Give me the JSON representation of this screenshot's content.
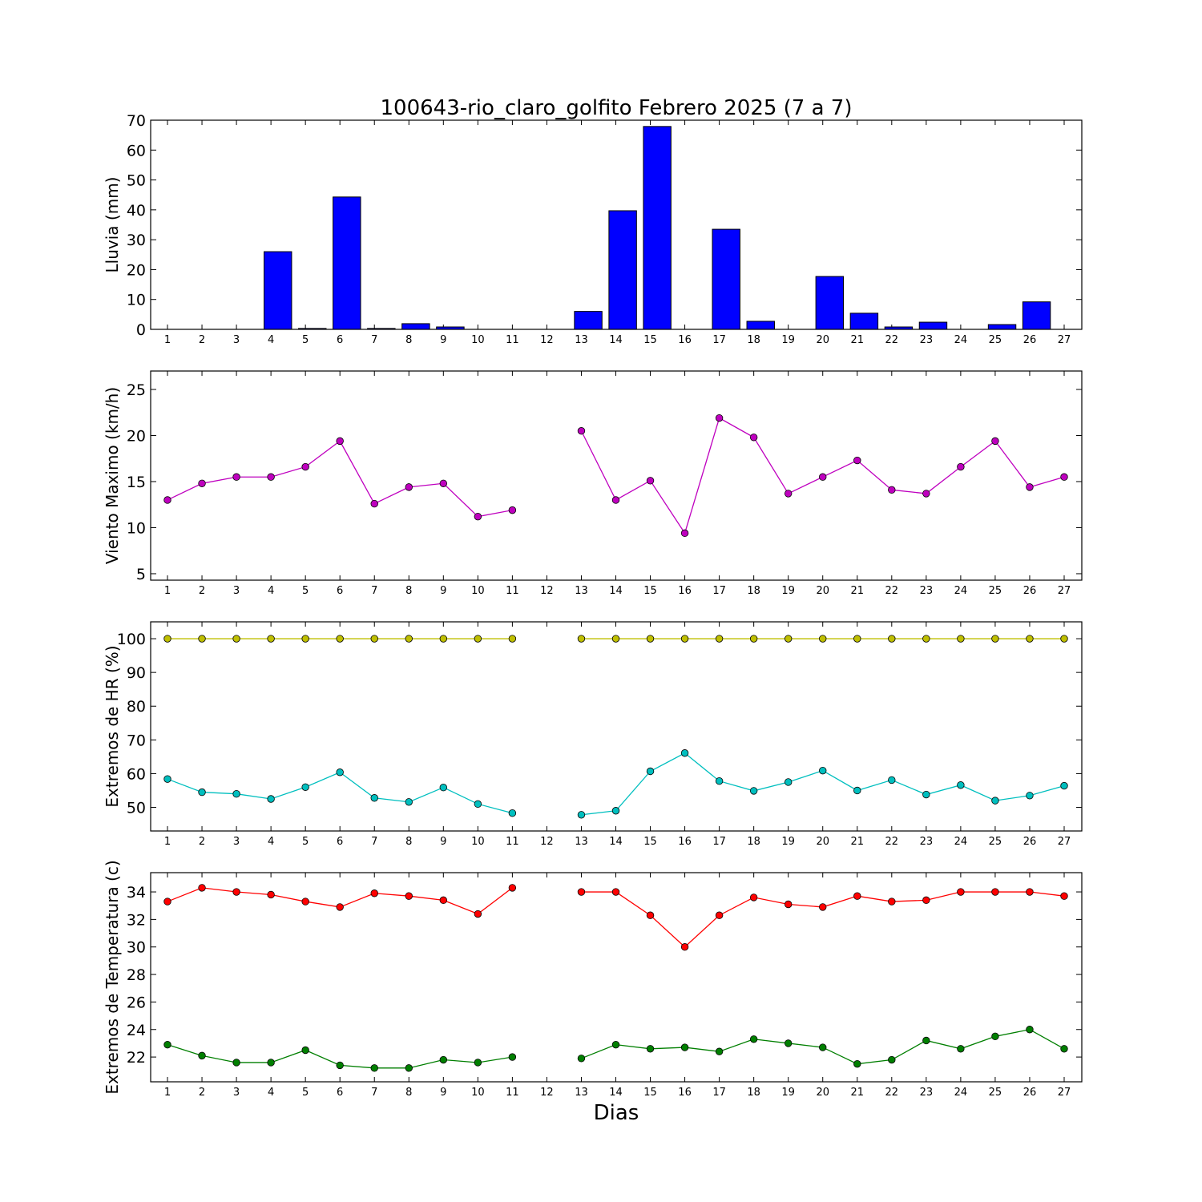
{
  "title": "100643-rio_claro_golfito Febrero 2025  (7 a 7)",
  "xlabel": "Dias",
  "chart_data": [
    {
      "type": "bar",
      "ylabel": "Lluvia (mm)",
      "ylim": [
        0,
        70
      ],
      "yticks": [
        0,
        10,
        20,
        30,
        40,
        50,
        60,
        70
      ],
      "categories": [
        1,
        2,
        3,
        4,
        5,
        6,
        7,
        8,
        9,
        10,
        11,
        12,
        13,
        14,
        15,
        16,
        17,
        18,
        19,
        20,
        21,
        22,
        23,
        24,
        25,
        26,
        27
      ],
      "series": [
        {
          "color": "#0000ff",
          "values": [
            0,
            0,
            0,
            26.0,
            0.3,
            44.3,
            0.3,
            1.9,
            0.8,
            0,
            0,
            0,
            6.0,
            39.7,
            67.9,
            0,
            33.5,
            2.7,
            0,
            17.7,
            5.4,
            0.8,
            2.4,
            0,
            1.6,
            9.2,
            0
          ]
        }
      ]
    },
    {
      "type": "line",
      "ylabel": "Viento Maximo (km/h)",
      "ylim": [
        4.3,
        27
      ],
      "yticks": [
        5,
        10,
        15,
        20,
        25
      ],
      "categories": [
        1,
        2,
        3,
        4,
        5,
        6,
        7,
        8,
        9,
        10,
        11,
        12,
        13,
        14,
        15,
        16,
        17,
        18,
        19,
        20,
        21,
        22,
        23,
        24,
        25,
        26,
        27
      ],
      "series": [
        {
          "color": "#bf00bf",
          "values": [
            13.0,
            14.8,
            15.5,
            15.5,
            16.6,
            19.4,
            12.6,
            14.4,
            14.8,
            11.2,
            11.9,
            null,
            20.5,
            13.0,
            15.1,
            9.4,
            21.9,
            19.8,
            13.7,
            15.5,
            17.3,
            14.1,
            13.7,
            16.6,
            19.4,
            14.4,
            15.5
          ]
        }
      ]
    },
    {
      "type": "line",
      "ylabel": "Extremos de HR (%)",
      "ylim": [
        43,
        105
      ],
      "yticks": [
        50,
        60,
        70,
        80,
        90,
        100
      ],
      "categories": [
        1,
        2,
        3,
        4,
        5,
        6,
        7,
        8,
        9,
        10,
        11,
        12,
        13,
        14,
        15,
        16,
        17,
        18,
        19,
        20,
        21,
        22,
        23,
        24,
        25,
        26,
        27
      ],
      "series": [
        {
          "color": "#bfbf00",
          "values": [
            100,
            100,
            100,
            100,
            100,
            100,
            100,
            100,
            100,
            100,
            100,
            null,
            100,
            100,
            100,
            100,
            100,
            100,
            100,
            100,
            100,
            100,
            100,
            100,
            100,
            100,
            100
          ]
        },
        {
          "color": "#00bfbf",
          "values": [
            58.4,
            54.5,
            54.0,
            52.5,
            56.0,
            60.4,
            52.8,
            51.6,
            55.9,
            51.0,
            48.3,
            null,
            47.8,
            49.0,
            60.7,
            66.1,
            57.8,
            54.9,
            57.5,
            60.9,
            55.0,
            58.1,
            53.8,
            56.6,
            52.0,
            53.5,
            56.4
          ]
        }
      ]
    },
    {
      "type": "line",
      "ylabel": "Extremos de Temperatura (c)",
      "ylim": [
        20.2,
        35.4
      ],
      "yticks": [
        22,
        24,
        26,
        28,
        30,
        32,
        34
      ],
      "categories": [
        1,
        2,
        3,
        4,
        5,
        6,
        7,
        8,
        9,
        10,
        11,
        12,
        13,
        14,
        15,
        16,
        17,
        18,
        19,
        20,
        21,
        22,
        23,
        24,
        25,
        26,
        27
      ],
      "series": [
        {
          "color": "#ff0000",
          "values": [
            33.3,
            34.3,
            34.0,
            33.8,
            33.3,
            32.9,
            33.9,
            33.7,
            33.4,
            32.4,
            34.3,
            null,
            34.0,
            34.0,
            32.3,
            30.0,
            32.3,
            33.6,
            33.1,
            32.9,
            33.7,
            33.3,
            33.4,
            34.0,
            34.0,
            34.0,
            33.7
          ]
        },
        {
          "color": "#007f00",
          "values": [
            22.9,
            22.1,
            21.6,
            21.6,
            22.5,
            21.4,
            21.2,
            21.2,
            21.8,
            21.6,
            22.0,
            null,
            21.9,
            22.9,
            22.6,
            22.7,
            22.4,
            23.3,
            23.0,
            22.7,
            21.5,
            21.8,
            23.2,
            22.6,
            23.5,
            24.0,
            22.6
          ]
        }
      ]
    }
  ]
}
